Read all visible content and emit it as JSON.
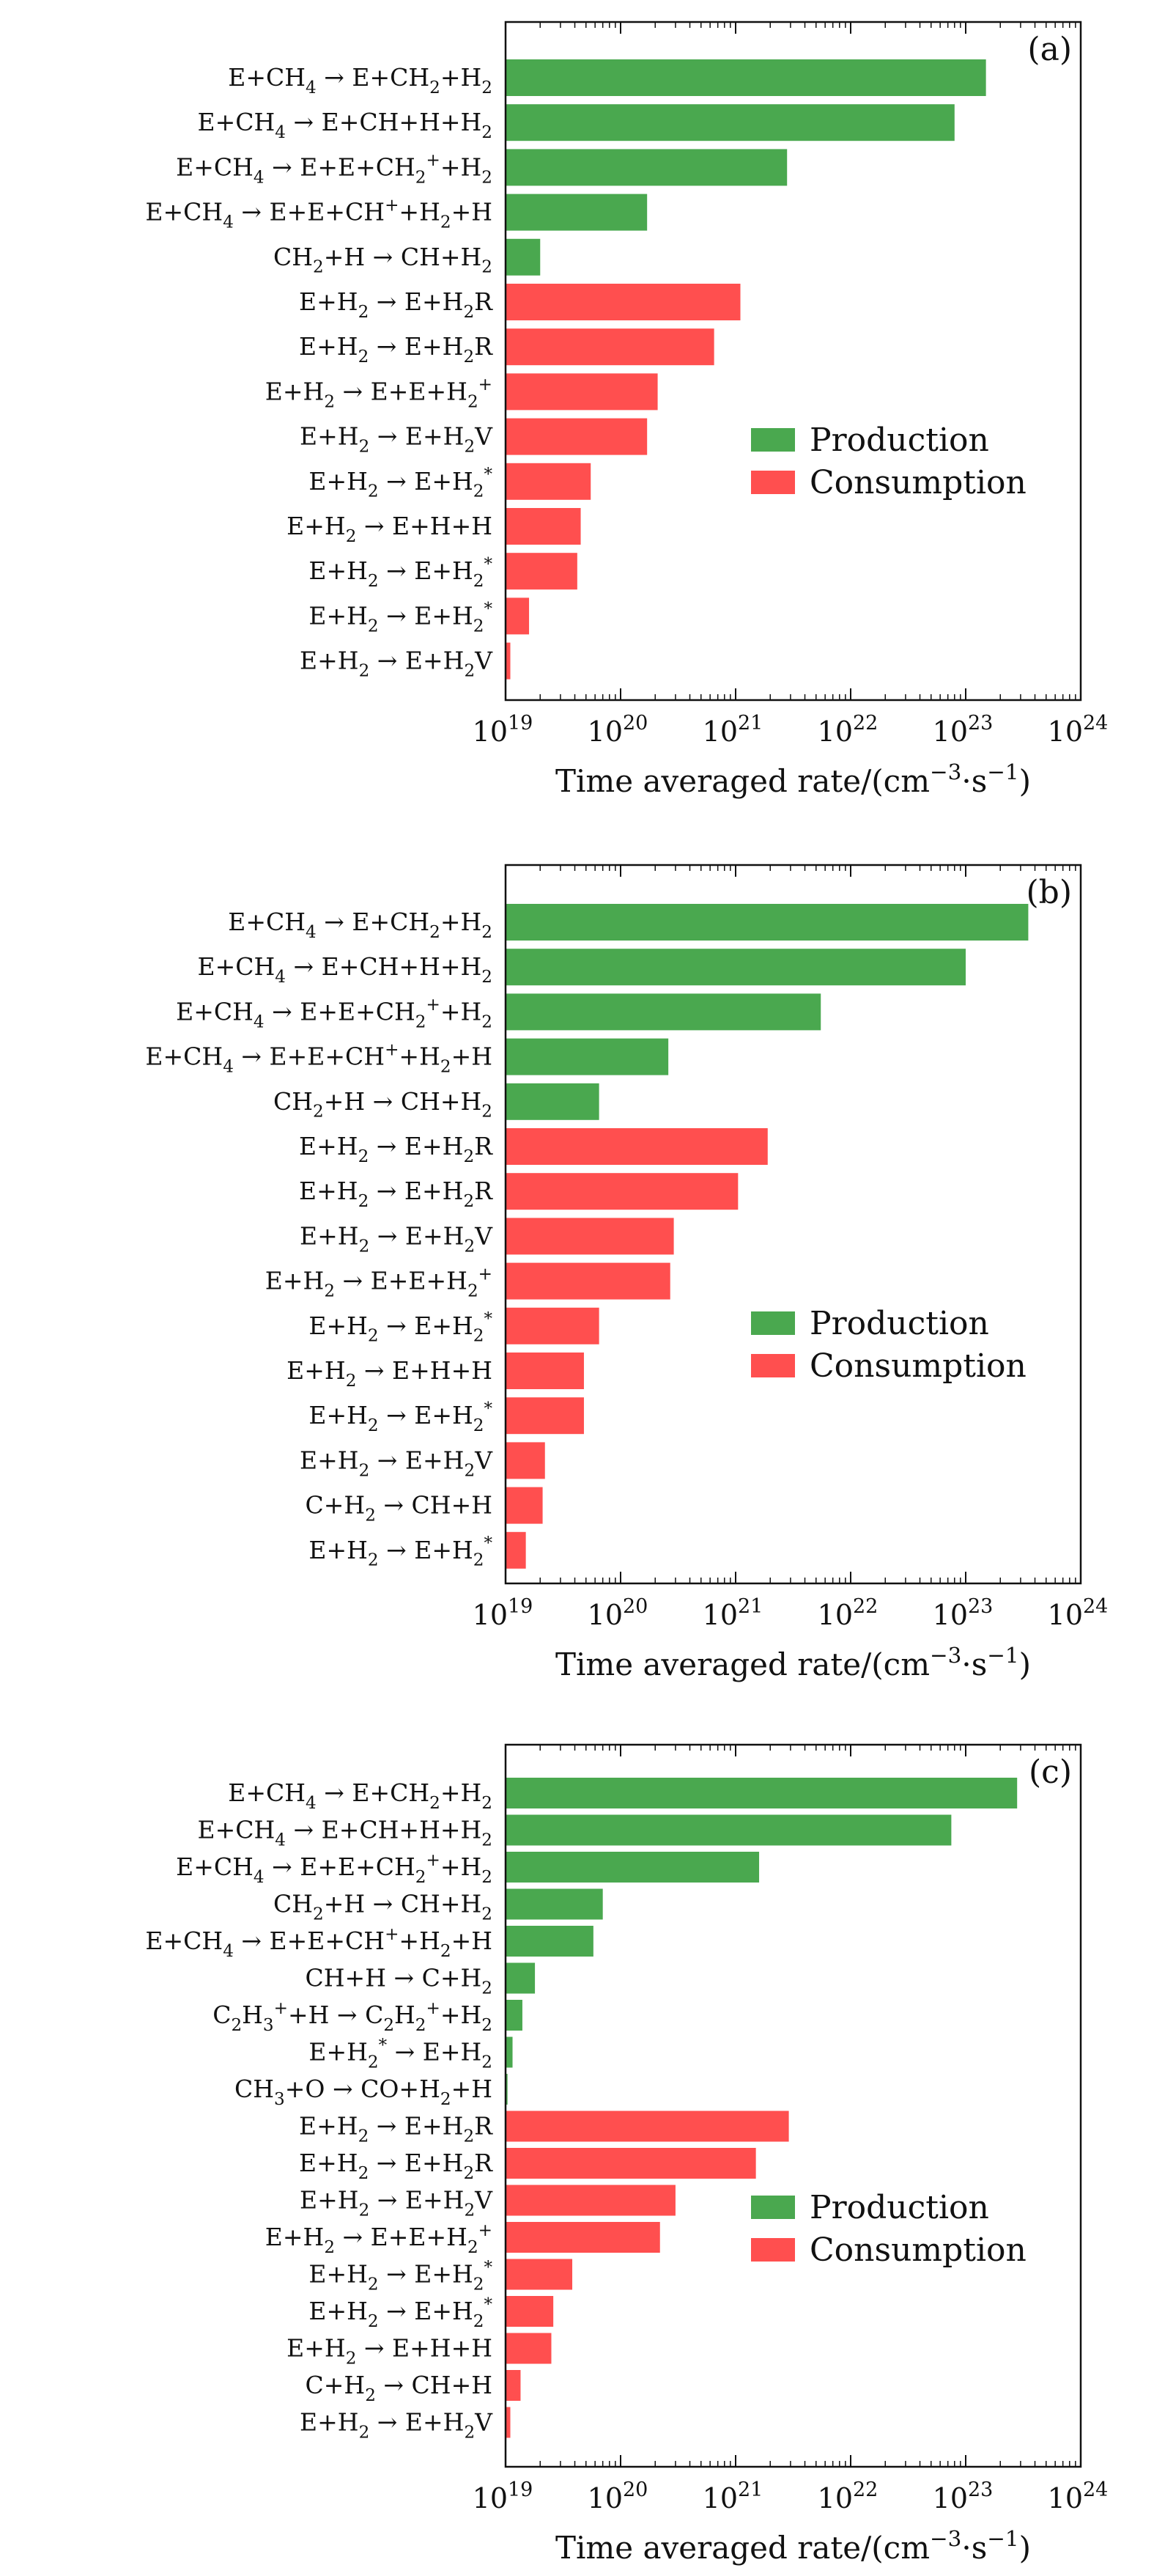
{
  "colors": {
    "production": "#4aa84f",
    "consumption": "#ff4f4f",
    "axis": "#111111"
  },
  "chart_data": [
    {
      "type": "bar",
      "orientation": "horizontal",
      "panel_label": "(a)",
      "xscale": "log",
      "xlim": [
        1e+19,
        1e+24
      ],
      "xticks": [
        19,
        20,
        21,
        22,
        23,
        24
      ],
      "xtick_base": "10",
      "xlabel": "Time averaged rate/(cm⁻³·s⁻¹)",
      "legend": {
        "placement": "center-right",
        "entries": [
          "Production",
          "Consumption"
        ]
      },
      "categories": [
        "E+CH₄→E+CH₂+H₂",
        "E+CH₄→E+CH+H+H₂",
        "E+CH₄→E+E+CH₂⁺+H₂",
        "E+CH₄→E+E+CH⁺+H₂+H",
        "CH₂+H→CH+H₂",
        "E+H₂→E+H₂R",
        "E+H₂→E+H₂R",
        "E+H₂→E+E+H₂⁺",
        "E+H₂→E+H₂V",
        "E+H₂→E+H₂*",
        "E+H₂→E+H+H",
        "E+H₂→E+H₂*",
        "E+H₂→E+H₂*",
        "E+H₂→E+H₂V"
      ],
      "values": [
        1.5e+23,
        8e+22,
        2.8e+21,
        1.7e+20,
        2e+19,
        1.1e+21,
        6.5e+20,
        2.1e+20,
        1.7e+20,
        5.5e+19,
        4.5e+19,
        4.2e+19,
        1.6e+19,
        1.1e+19
      ],
      "series_kind": [
        "Production",
        "Production",
        "Production",
        "Production",
        "Production",
        "Consumption",
        "Consumption",
        "Consumption",
        "Consumption",
        "Consumption",
        "Consumption",
        "Consumption",
        "Consumption",
        "Consumption"
      ]
    },
    {
      "type": "bar",
      "orientation": "horizontal",
      "panel_label": "(b)",
      "xscale": "log",
      "xlim": [
        1e+19,
        1e+24
      ],
      "xticks": [
        19,
        20,
        21,
        22,
        23,
        24
      ],
      "xtick_base": "10",
      "xlabel": "Time averaged rate/(cm⁻³·s⁻¹)",
      "legend": {
        "placement": "center-right",
        "entries": [
          "Production",
          "Consumption"
        ]
      },
      "categories": [
        "E+CH₄→E+CH₂+H₂",
        "E+CH₄→E+CH+H+H₂",
        "E+CH₄→E+E+CH₂⁺+H₂",
        "E+CH₄→E+E+CH⁺+H₂+H",
        "CH₂+H→CH+H₂",
        "E+H₂→E+H₂R",
        "E+H₂→E+H₂R",
        "E+H₂→E+H₂V",
        "E+H₂→E+E+H₂⁺",
        "E+H₂→E+H₂*",
        "E+H₂→E+H+H",
        "E+H₂→E+H₂*",
        "E+H₂→E+H₂V",
        "C+H₂→CH+H",
        "E+H₂→E+H₂*"
      ],
      "values": [
        3.5e+23,
        1e+23,
        5.5e+21,
        2.6e+20,
        6.5e+19,
        1.9e+21,
        1.05e+21,
        2.9e+20,
        2.7e+20,
        6.5e+19,
        4.8e+19,
        4.8e+19,
        2.2e+19,
        2.1e+19,
        1.5e+19
      ],
      "series_kind": [
        "Production",
        "Production",
        "Production",
        "Production",
        "Production",
        "Consumption",
        "Consumption",
        "Consumption",
        "Consumption",
        "Consumption",
        "Consumption",
        "Consumption",
        "Consumption",
        "Consumption",
        "Consumption"
      ]
    },
    {
      "type": "bar",
      "orientation": "horizontal",
      "panel_label": "(c)",
      "xscale": "log",
      "xlim": [
        1e+19,
        1e+24
      ],
      "xticks": [
        19,
        20,
        21,
        22,
        23,
        24
      ],
      "xtick_base": "10",
      "xlabel": "Time averaged rate/(cm⁻³·s⁻¹)",
      "legend": {
        "placement": "center-right",
        "entries": [
          "Production",
          "Consumption"
        ]
      },
      "categories": [
        "E+CH₄→E+CH₂+H₂",
        "E+CH₄→E+CH+H+H₂",
        "E+CH₄→E+E+CH₂⁺+H₂",
        "CH₂+H→CH+H₂",
        "E+CH₄→E+E+CH⁺+H₂+H",
        "CH+H→C+H₂",
        "C₂H₃⁺+H→C₂H₂⁺+H₂",
        "E+H₂*→E+H₂",
        "CH₃+O→CO+H₂+H",
        "E+H₂→E+H₂R",
        "E+H₂→E+H₂R",
        "E+H₂→E+H₂V",
        "E+H₂→E+E+H₂⁺",
        "E+H₂→E+H₂*",
        "E+H₂→E+H₂*",
        "E+H₂→E+H+H",
        "C+H₂→CH+H",
        "E+H₂→E+H₂V"
      ],
      "values": [
        2.8e+23,
        7.5e+22,
        1.6e+21,
        7e+19,
        5.8e+19,
        1.8e+19,
        1.4e+19,
        1.15e+19,
        1.04e+19,
        2.9e+21,
        1.5e+21,
        3e+20,
        2.2e+20,
        3.8e+19,
        2.6e+19,
        2.5e+19,
        1.35e+19,
        1.1e+19
      ],
      "series_kind": [
        "Production",
        "Production",
        "Production",
        "Production",
        "Production",
        "Production",
        "Production",
        "Production",
        "Production",
        "Consumption",
        "Consumption",
        "Consumption",
        "Consumption",
        "Consumption",
        "Consumption",
        "Consumption",
        "Consumption",
        "Consumption"
      ]
    }
  ]
}
